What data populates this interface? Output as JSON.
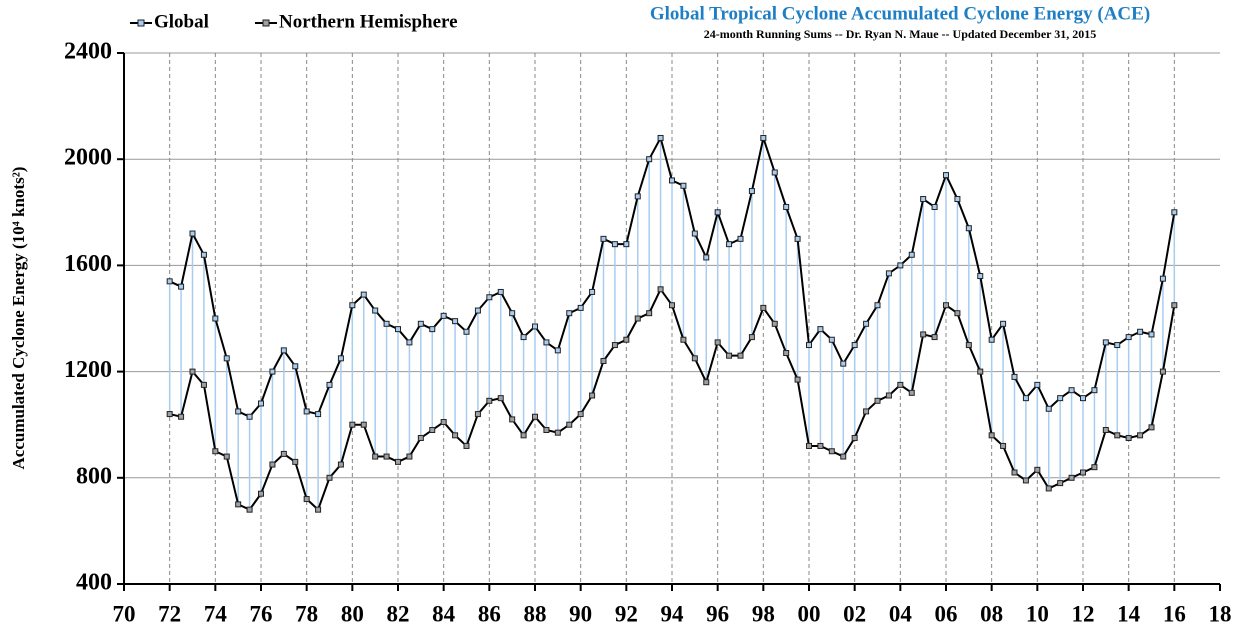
{
  "chart_data": {
    "type": "line",
    "title": "Global Tropical Cyclone Accumulated Cyclone Energy (ACE)",
    "subtitle": "24-month Running Sums -- Dr. Ryan N. Maue -- Updated December  31, 2015",
    "y_label": "Accumulated Cyclone Energy (10⁴ knots²)",
    "x": [
      72,
      72.5,
      73,
      73.5,
      74,
      74.5,
      75,
      75.5,
      76,
      76.5,
      77,
      77.5,
      78,
      78.5,
      79,
      79.5,
      80,
      80.5,
      81,
      81.5,
      82,
      82.5,
      83,
      83.5,
      84,
      84.5,
      85,
      85.5,
      86,
      86.5,
      87,
      87.5,
      88,
      88.5,
      89,
      89.5,
      90,
      90.5,
      91,
      91.5,
      92,
      92.5,
      93,
      93.5,
      94,
      94.5,
      95,
      95.5,
      96,
      96.5,
      97,
      97.5,
      98,
      98.5,
      99,
      99.5,
      100,
      100.5,
      101,
      101.5,
      102,
      102.5,
      103,
      103.5,
      104,
      104.5,
      105,
      105.5,
      106,
      106.5,
      107,
      107.5,
      108,
      108.5,
      109,
      109.5,
      110,
      110.5,
      111,
      111.5,
      112,
      112.5,
      113,
      113.5,
      114,
      114.5,
      115,
      115.5,
      116
    ],
    "series": [
      {
        "name": "Global",
        "color": "#a8cdf0",
        "values": [
          1540,
          1520,
          1720,
          1640,
          1400,
          1250,
          1050,
          1030,
          1080,
          1200,
          1280,
          1220,
          1050,
          1040,
          1150,
          1250,
          1450,
          1490,
          1430,
          1380,
          1360,
          1310,
          1380,
          1360,
          1410,
          1390,
          1350,
          1430,
          1480,
          1500,
          1420,
          1330,
          1370,
          1310,
          1280,
          1420,
          1440,
          1500,
          1700,
          1680,
          1680,
          1860,
          2000,
          2080,
          1920,
          1900,
          1720,
          1630,
          1800,
          1680,
          1700,
          1880,
          2080,
          1950,
          1820,
          1700,
          1300,
          1360,
          1320,
          1230,
          1300,
          1380,
          1450,
          1570,
          1600,
          1640,
          1850,
          1820,
          1940,
          1850,
          1740,
          1560,
          1320,
          1380,
          1180,
          1100,
          1150,
          1060,
          1100,
          1130,
          1100,
          1130,
          1310,
          1300,
          1330,
          1350,
          1340,
          1550,
          1800
        ]
      },
      {
        "name": "Northern Hemisphere",
        "color": "#a0a0a0",
        "values": [
          1040,
          1030,
          1200,
          1150,
          900,
          880,
          700,
          680,
          740,
          850,
          890,
          860,
          720,
          680,
          800,
          850,
          1000,
          1000,
          880,
          880,
          860,
          880,
          950,
          980,
          1010,
          960,
          920,
          1040,
          1090,
          1100,
          1020,
          960,
          1030,
          980,
          970,
          1000,
          1040,
          1110,
          1240,
          1300,
          1320,
          1400,
          1420,
          1510,
          1450,
          1320,
          1250,
          1160,
          1310,
          1260,
          1260,
          1330,
          1440,
          1380,
          1270,
          1170,
          920,
          920,
          900,
          880,
          950,
          1050,
          1090,
          1110,
          1150,
          1120,
          1340,
          1330,
          1450,
          1420,
          1300,
          1200,
          960,
          920,
          820,
          790,
          830,
          760,
          780,
          800,
          820,
          840,
          980,
          960,
          950,
          960,
          990,
          1200,
          1450
        ]
      }
    ],
    "xlim": [
      70,
      118
    ],
    "xticks": [
      70,
      72,
      74,
      76,
      78,
      80,
      82,
      84,
      86,
      88,
      90,
      92,
      94,
      96,
      98,
      {
        "value": 100,
        "label": "00"
      },
      {
        "value": 102,
        "label": "02"
      },
      {
        "value": 104,
        "label": "04"
      },
      {
        "value": 106,
        "label": "06"
      },
      {
        "value": 108,
        "label": "08"
      },
      {
        "value": 110,
        "label": "10"
      },
      {
        "value": 112,
        "label": "12"
      },
      {
        "value": 114,
        "label": "14"
      },
      {
        "value": 116,
        "label": "16"
      },
      {
        "value": 118,
        "label": "18"
      }
    ],
    "ylim": [
      400,
      2400
    ],
    "yticks": [
      400,
      800,
      1200,
      1600,
      2000,
      2400
    ],
    "grid": true
  }
}
